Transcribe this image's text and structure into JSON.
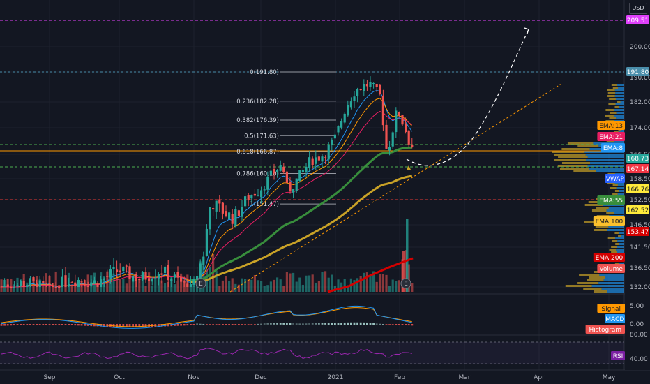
{
  "currency": "USD",
  "x_labels": [
    "Sep",
    "Oct",
    "Nov",
    "Dec",
    "2021",
    "Feb",
    "Mar",
    "Apr",
    "May"
  ],
  "fib_levels": [
    {
      "label": "0(191.80)",
      "price": 191.8
    },
    {
      "label": "0.236(182.28)",
      "price": 182.28
    },
    {
      "label": "0.382(176.39)",
      "price": 176.39
    },
    {
      "label": "0.5(171.63)",
      "price": 171.63
    },
    {
      "label": "0.618(166.87)",
      "price": 166.87
    },
    {
      "label": "0.786(160.10)",
      "price": 160.1
    },
    {
      "label": "1(151.47)",
      "price": 151.47
    }
  ],
  "price_scale_ticks": [
    {
      "label": "200.00",
      "price": 200
    },
    {
      "label": "190.00",
      "price": 190
    },
    {
      "label": "182.00",
      "price": 182
    },
    {
      "label": "174.00",
      "price": 174
    },
    {
      "label": "166.00",
      "price": 166
    },
    {
      "label": "158.50",
      "price": 158.5
    },
    {
      "label": "152.50",
      "price": 152.5
    },
    {
      "label": "146.50",
      "price": 146.5
    },
    {
      "label": "141.50",
      "price": 141.5
    },
    {
      "label": "136.50",
      "price": 136.5
    },
    {
      "label": "132.00",
      "price": 132
    }
  ],
  "price_tags": [
    {
      "label": "209.51",
      "bg": "#e040fb",
      "fg": "#ffffff",
      "y": 29
    },
    {
      "label": "191.80",
      "bg": "#4a8eab",
      "fg": "#ffffff",
      "y": 103
    },
    {
      "label": "EMA:13",
      "bg": "#ff9800",
      "fg": "#131722",
      "y": 180
    },
    {
      "label": "EMA:21",
      "bg": "#e91e63",
      "fg": "#ffffff",
      "y": 196
    },
    {
      "label": "EMA:8",
      "bg": "#2196f3",
      "fg": "#ffffff",
      "y": 212
    },
    {
      "label": "168.73",
      "bg": "#26a69a",
      "fg": "#ffffff",
      "y": 227
    },
    {
      "label": "167.14",
      "bg": "#f23645",
      "fg": "#ffffff",
      "y": 242
    },
    {
      "label": "VWAP",
      "bg": "#2962ff",
      "fg": "#ffffff",
      "y": 256
    },
    {
      "label": "166.76",
      "bg": "#ffeb3b",
      "fg": "#131722",
      "y": 271
    },
    {
      "label": "EMA:55",
      "bg": "#388e3c",
      "fg": "#ffffff",
      "y": 287
    },
    {
      "label": "162.52",
      "bg": "#ffeb3b",
      "fg": "#131722",
      "y": 301
    },
    {
      "label": "EMA:100",
      "bg": "#fbc02d",
      "fg": "#131722",
      "y": 317
    },
    {
      "label": "153.47",
      "bg": "#d50000",
      "fg": "#ffffff",
      "y": 332
    },
    {
      "label": "EMA:200",
      "bg": "#d50000",
      "fg": "#ffffff",
      "y": 369
    },
    {
      "label": "Volume",
      "bg": "#ef5350",
      "fg": "#ffffff",
      "y": 385
    }
  ],
  "macd_pane": {
    "ticks": [
      {
        "label": "5.00",
        "value": 5
      },
      {
        "label": "0.00",
        "value": 0
      }
    ],
    "tags": [
      {
        "label": "Signal",
        "bg": "#ff9800",
        "fg": "#131722"
      },
      {
        "label": "MACD",
        "bg": "#2196f3",
        "fg": "#ffffff"
      },
      {
        "label": "Histogram",
        "bg": "#ef5350",
        "fg": "#ffffff"
      }
    ]
  },
  "rsi_pane": {
    "ticks": [
      {
        "label": "80.00",
        "value": 80
      },
      {
        "label": "40.00",
        "value": 40
      }
    ],
    "tag": {
      "label": "RSI",
      "bg": "#7b1fa2",
      "fg": "#ffffff"
    }
  },
  "earnings_markers": [
    "E",
    "E"
  ],
  "colors": {
    "up": "#26a69a",
    "down": "#ef5350",
    "ema8": "#2196f3",
    "ema13": "#ff9800",
    "ema21": "#e91e63",
    "ema55": "#388e3c",
    "ema100": "#c9a227",
    "ema200": "#d50000",
    "rsi": "#9c27b0",
    "fib": "#787b86",
    "pink_line": "#e040fb",
    "target": "#00bcd4",
    "support": "#4caf50",
    "resist": "#e53935"
  },
  "chart_data": {
    "type": "candlestick",
    "x_axis": [
      "Sep",
      "Oct",
      "Nov",
      "Dec",
      "2021",
      "Feb",
      "Mar",
      "Apr",
      "May"
    ],
    "approx_close_path": [
      {
        "period": "Sep",
        "close": 132
      },
      {
        "period": "Oct",
        "close": 135
      },
      {
        "period": "Nov start",
        "close": 132
      },
      {
        "period": "Nov mid",
        "close": 148
      },
      {
        "period": "Dec",
        "close": 153
      },
      {
        "period": "Dec mid",
        "close": 164
      },
      {
        "period": "2021",
        "close": 172
      },
      {
        "period": "Jan mid",
        "close": 189
      },
      {
        "period": "Feb",
        "close": 167
      }
    ],
    "horizontal_levels": [
      209.51,
      191.8,
      168.73,
      166.76,
      162.52,
      153.47
    ],
    "ylim": [
      130,
      212
    ]
  }
}
